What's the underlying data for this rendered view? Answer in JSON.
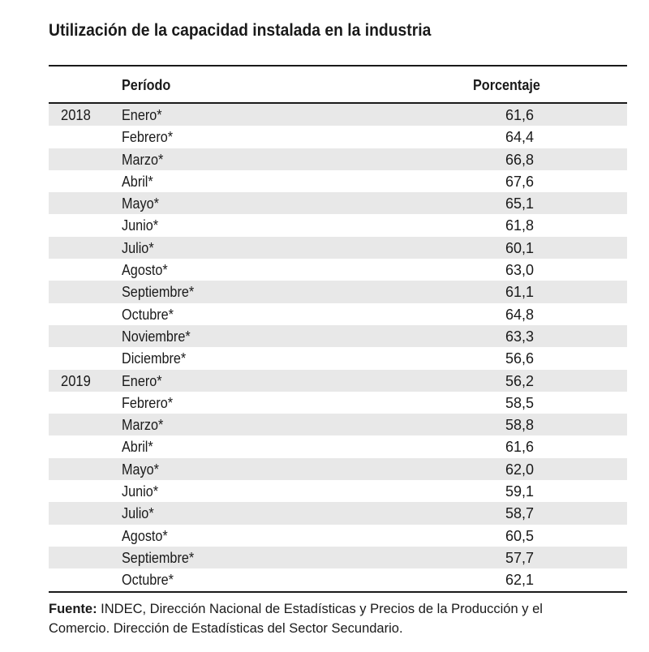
{
  "title": "Utilización de la capacidad instalada en la industria",
  "columns": {
    "period": "Período",
    "percentage": "Porcentaje"
  },
  "rows": [
    {
      "year": "2018",
      "month": "Enero*",
      "value": "61,6"
    },
    {
      "year": "",
      "month": "Febrero*",
      "value": "64,4"
    },
    {
      "year": "",
      "month": "Marzo*",
      "value": "66,8"
    },
    {
      "year": "",
      "month": "Abril*",
      "value": "67,6"
    },
    {
      "year": "",
      "month": "Mayo*",
      "value": "65,1"
    },
    {
      "year": "",
      "month": "Junio*",
      "value": "61,8"
    },
    {
      "year": "",
      "month": "Julio*",
      "value": "60,1"
    },
    {
      "year": "",
      "month": "Agosto*",
      "value": "63,0"
    },
    {
      "year": "",
      "month": "Septiembre*",
      "value": "61,1"
    },
    {
      "year": "",
      "month": "Octubre*",
      "value": "64,8"
    },
    {
      "year": "",
      "month": "Noviembre*",
      "value": "63,3"
    },
    {
      "year": "",
      "month": "Diciembre*",
      "value": "56,6"
    },
    {
      "year": "2019",
      "month": "Enero*",
      "value": "56,2"
    },
    {
      "year": "",
      "month": "Febrero*",
      "value": "58,5"
    },
    {
      "year": "",
      "month": "Marzo*",
      "value": "58,8"
    },
    {
      "year": "",
      "month": "Abril*",
      "value": "61,6"
    },
    {
      "year": "",
      "month": "Mayo*",
      "value": "62,0"
    },
    {
      "year": "",
      "month": "Junio*",
      "value": "59,1"
    },
    {
      "year": "",
      "month": "Julio*",
      "value": "58,7"
    },
    {
      "year": "",
      "month": "Agosto*",
      "value": "60,5"
    },
    {
      "year": "",
      "month": "Septiembre*",
      "value": "57,7"
    },
    {
      "year": "",
      "month": "Octubre*",
      "value": "62,1"
    }
  ],
  "source": {
    "label": "Fuente:",
    "line1": " INDEC, Dirección Nacional de Estadísticas y Precios de la Producción y el",
    "line2": "Comercio. Dirección de Estadísticas del Sector Secundario."
  }
}
